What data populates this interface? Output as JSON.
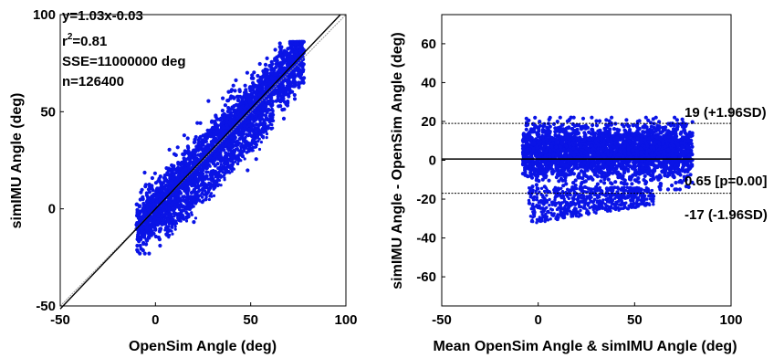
{
  "chart_data": [
    {
      "type": "scatter",
      "xlabel": "OpenSim Angle (deg)",
      "ylabel": "simIMU Angle (deg)",
      "xlim": [
        -50,
        100
      ],
      "ylim": [
        -50,
        100
      ],
      "xticks": [
        "-50",
        "0",
        "50",
        "100"
      ],
      "yticks": [
        "-50",
        "0",
        "50",
        "100"
      ],
      "annotations": [
        "y=1.03x-0.03",
        "SSE=11000000 deg",
        "n=126400"
      ],
      "r2_label": "r",
      "r2_sup": "2",
      "r2_value": "=0.81",
      "fit": {
        "slope": 1.03,
        "intercept": -0.03,
        "color": "#000000"
      },
      "identity_line": {
        "color": "#9a9a9a"
      },
      "point_color": "#0a14e6",
      "clouds": [
        {
          "x_range": [
            -10,
            78
          ],
          "y_center_slope": 1.03,
          "y_center_offset": 0,
          "spread": 13
        },
        {
          "x_range": [
            5,
            62
          ],
          "y_center_slope": 1.03,
          "y_center_offset": -17,
          "spread": 5
        }
      ]
    },
    {
      "type": "scatter",
      "xlabel": "Mean OpenSim Angle & simIMU Angle (deg)",
      "ylabel": "simIMU Angle - OpenSim Angle (deg)",
      "xlim": [
        -50,
        100
      ],
      "ylim": [
        -75,
        75
      ],
      "xticks": [
        "-50",
        "0",
        "50",
        "100"
      ],
      "yticks": [
        "-60",
        "-40",
        "-20",
        "0",
        "20",
        "40",
        "60"
      ],
      "mean_diff": 0.65,
      "upper_loa": 19,
      "lower_loa": -17,
      "labels": {
        "upper": "19 (+1.96SD)",
        "mean": "0.65 [p=0.00]",
        "lower": "-17 (-1.96SD)"
      },
      "point_color": "#0a14e6",
      "clouds": [
        {
          "x_range": [
            -8,
            80
          ],
          "y_range": [
            -12,
            20
          ]
        },
        {
          "x_range": [
            -5,
            60
          ],
          "y_range": [
            -33,
            -14
          ]
        }
      ]
    }
  ]
}
